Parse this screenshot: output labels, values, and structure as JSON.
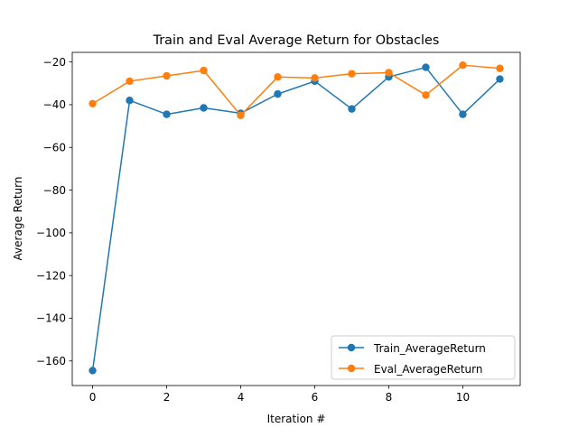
{
  "chart_data": {
    "type": "line",
    "title": "Train and Eval Average Return for Obstacles",
    "xlabel": "Iteration #",
    "ylabel": "Average Return",
    "x": [
      0,
      1,
      2,
      3,
      4,
      5,
      6,
      7,
      8,
      9,
      10,
      11
    ],
    "xlim": [
      -0.55,
      11.55
    ],
    "ylim": [
      -171.5,
      -15.5
    ],
    "xticks": [
      0,
      2,
      4,
      6,
      8,
      10
    ],
    "yticks": [
      -160,
      -140,
      -120,
      -100,
      -80,
      -60,
      -40,
      -20
    ],
    "xtick_labels": [
      "0",
      "2",
      "4",
      "6",
      "8",
      "10"
    ],
    "ytick_labels": [
      "−160",
      "−140",
      "−120",
      "−100",
      "−80",
      "−60",
      "−40",
      "−20"
    ],
    "grid": false,
    "legend_position": "lower-right",
    "series": [
      {
        "name": "Train_AverageReturn",
        "color": "#1f77b4",
        "values": [
          -164.5,
          -38.0,
          -44.5,
          -41.5,
          -44.0,
          -35.0,
          -29.0,
          -42.0,
          -27.0,
          -22.5,
          -44.5,
          -28.0
        ]
      },
      {
        "name": "Eval_AverageReturn",
        "color": "#ff7f0e",
        "values": [
          -39.5,
          -29.0,
          -26.5,
          -24.0,
          -45.0,
          -27.0,
          -27.5,
          -25.5,
          -25.0,
          -35.5,
          -21.5,
          -23.0
        ]
      }
    ]
  }
}
